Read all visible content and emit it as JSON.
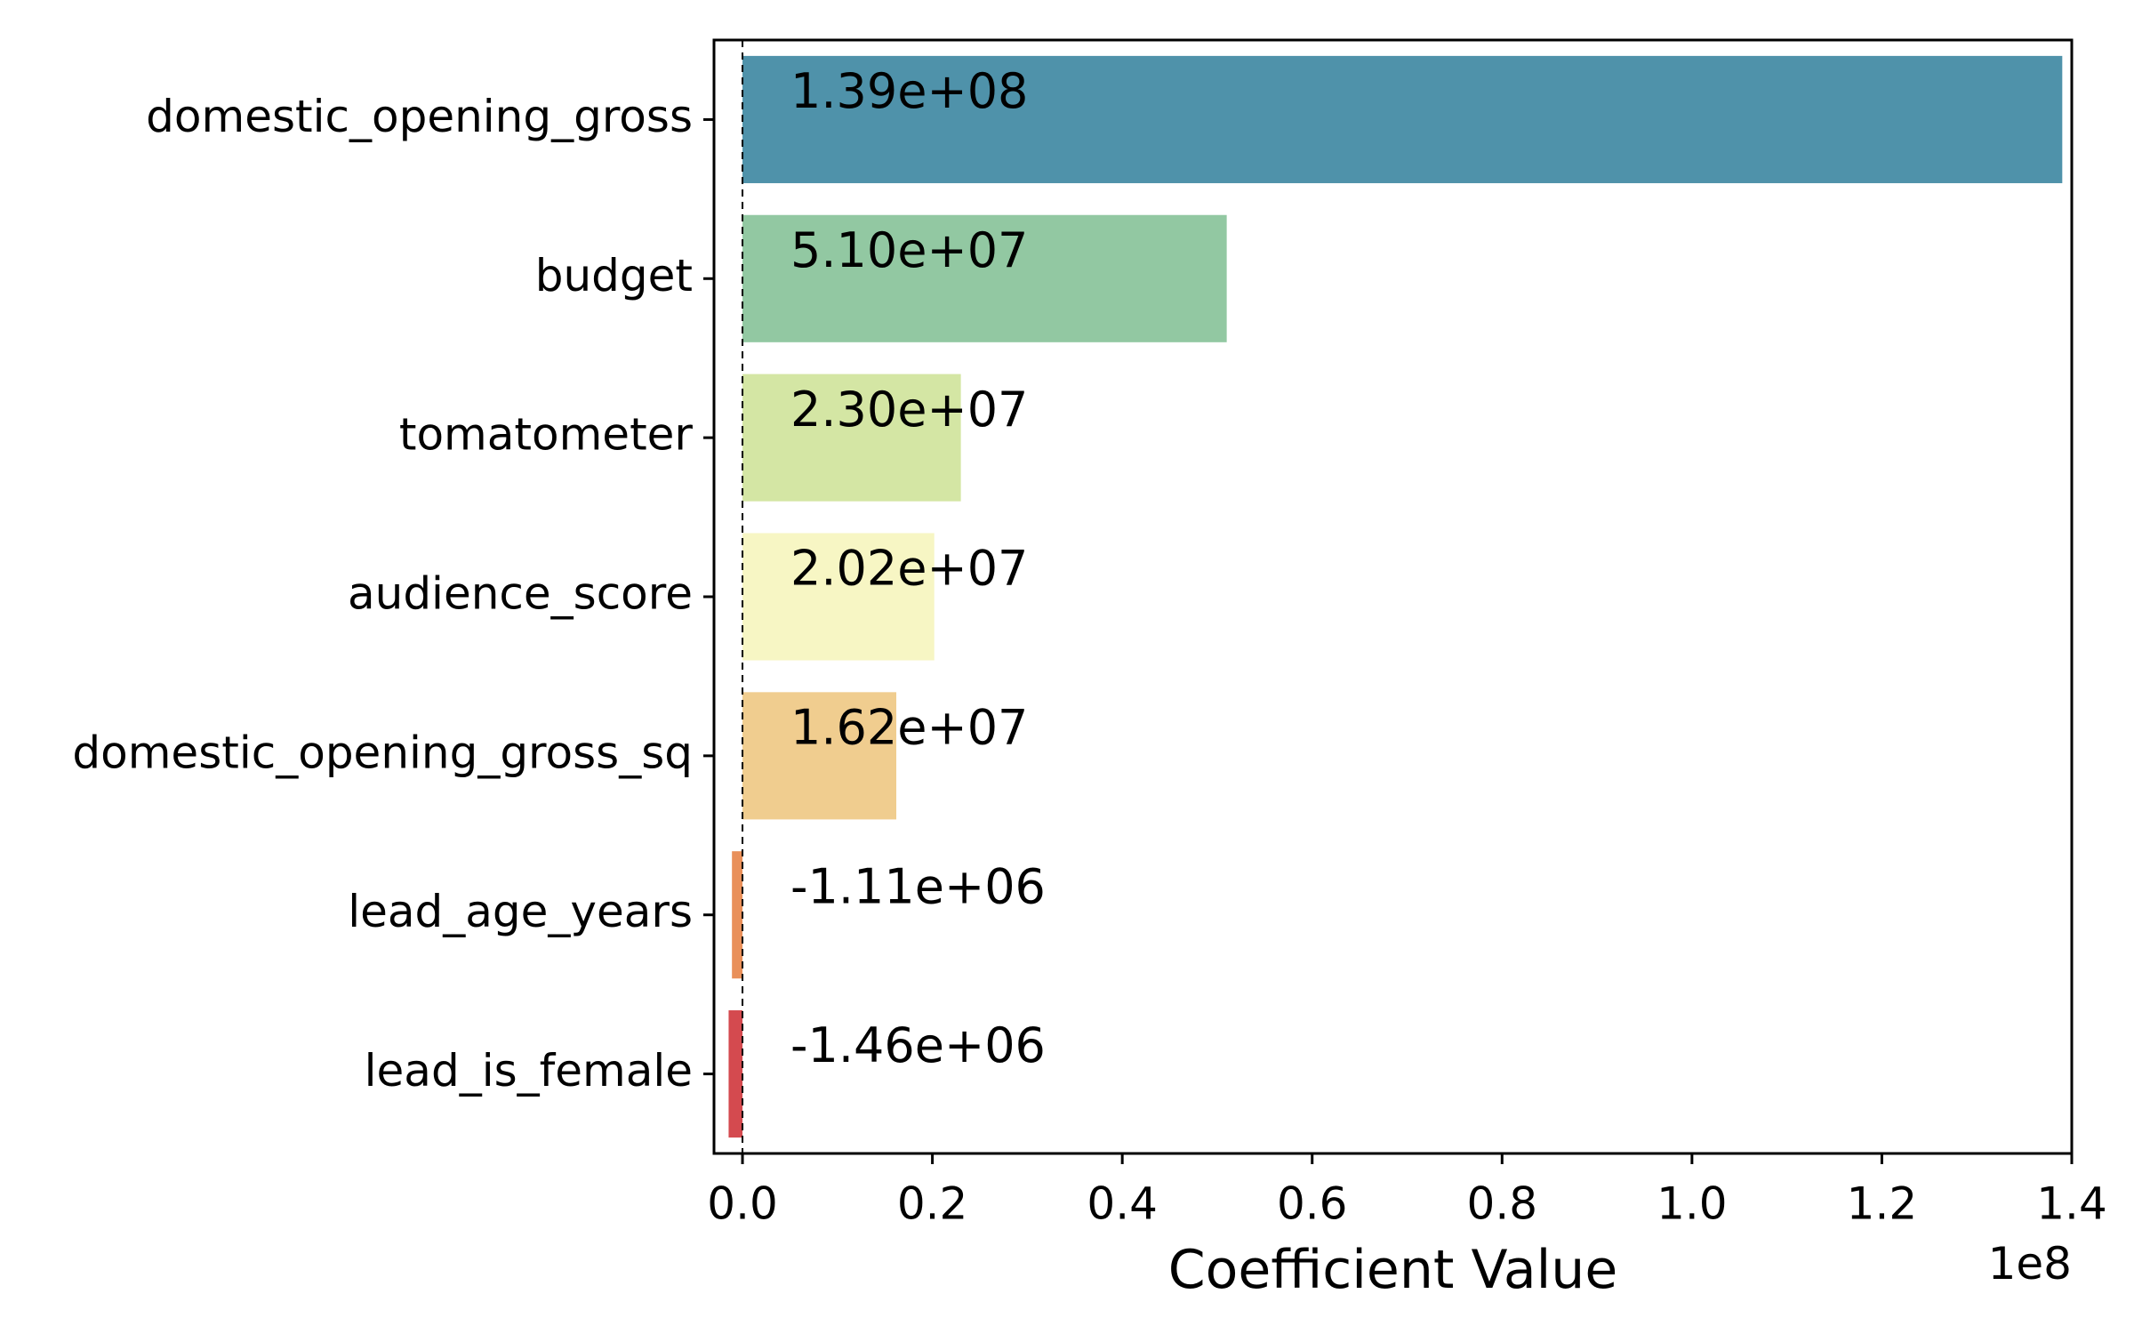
{
  "chart_data": {
    "type": "bar",
    "orientation": "horizontal",
    "title": "",
    "xlabel": "Coefficient Value",
    "ylabel": "",
    "x_offset_label": "1e8",
    "xlim": [
      -0.03,
      1.4
    ],
    "x_ticks": [
      0.0,
      0.2,
      0.4,
      0.6,
      0.8,
      1.0,
      1.2,
      1.4
    ],
    "x_tick_labels": [
      "0.0",
      "0.2",
      "0.4",
      "0.6",
      "0.8",
      "1.0",
      "1.2",
      "1.4"
    ],
    "grid": false,
    "zero_line": true,
    "categories": [
      "domestic_opening_gross",
      "budget",
      "tomatometer",
      "audience_score",
      "domestic_opening_gross_sq",
      "lead_age_years",
      "lead_is_female"
    ],
    "values": [
      139000000,
      51000000,
      23000000,
      20200000,
      16200000,
      -1110000,
      -1460000
    ],
    "value_labels": [
      "1.39e+08",
      "5.10e+07",
      "2.30e+07",
      "2.02e+07",
      "1.62e+07",
      "-1.11e+06",
      "-1.46e+06"
    ],
    "colors": [
      "#4f92aa",
      "#92c8a2",
      "#d4e6a4",
      "#f7f6c4",
      "#f0cd8f",
      "#e9905a",
      "#d44a4f"
    ]
  }
}
